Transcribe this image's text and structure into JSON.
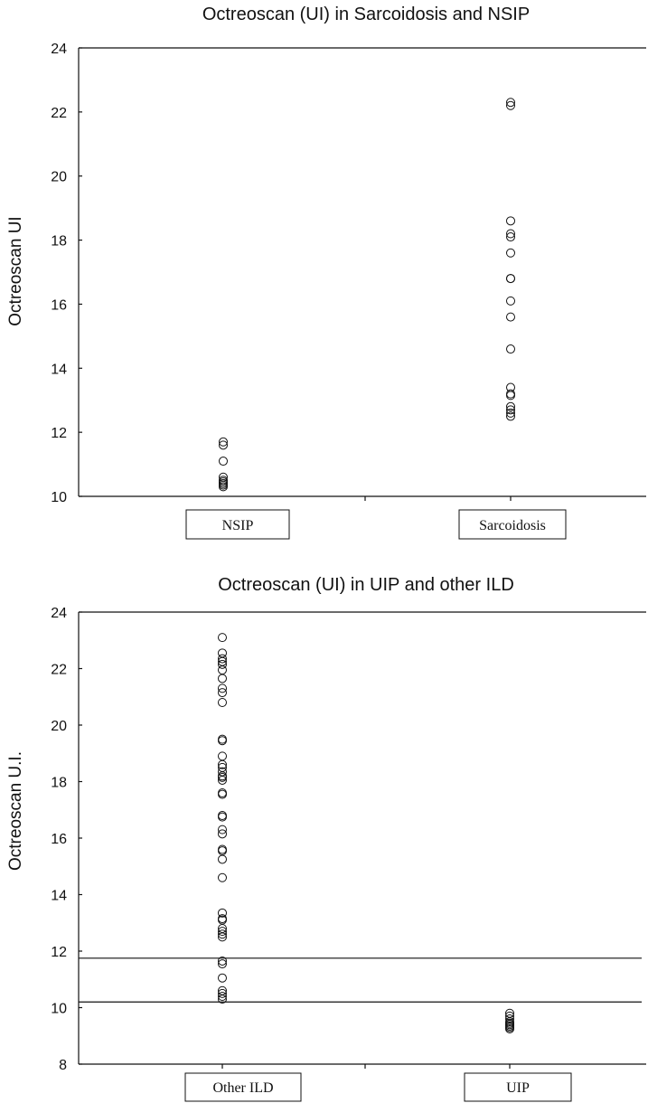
{
  "chart_data": [
    {
      "type": "scatter",
      "title": "Octreoscan (UI) in Sarcoidosis and NSIP",
      "ylabel": "Octreoscan UI",
      "xlabel": "",
      "categories": [
        "NSIP",
        "Sarcoidosis"
      ],
      "ylim": [
        10,
        24
      ],
      "yticks": [
        10,
        12,
        14,
        16,
        18,
        20,
        22,
        24
      ],
      "grid": false,
      "series": [
        {
          "category": "NSIP",
          "values": [
            11.7,
            11.6,
            11.1,
            10.6,
            10.5,
            10.45,
            10.4,
            10.35,
            10.3
          ]
        },
        {
          "category": "Sarcoidosis",
          "values": [
            22.3,
            22.2,
            18.6,
            18.2,
            18.1,
            17.6,
            16.8,
            16.8,
            16.1,
            15.6,
            14.6,
            13.4,
            13.2,
            13.15,
            12.8,
            12.7,
            12.6,
            12.5
          ]
        }
      ]
    },
    {
      "type": "scatter",
      "title": "Octreoscan (UI)  in UIP and other ILD",
      "ylabel": "Octreoscan  U.I.",
      "xlabel": "",
      "categories": [
        "Other ILD",
        "UIP"
      ],
      "ylim": [
        8,
        24
      ],
      "yticks": [
        8,
        10,
        12,
        14,
        16,
        18,
        20,
        22,
        24
      ],
      "grid": false,
      "reference_lines": [
        11.75,
        10.2
      ],
      "series": [
        {
          "category": "Other ILD",
          "values": [
            23.1,
            22.55,
            22.35,
            22.25,
            22.15,
            21.95,
            21.65,
            21.3,
            21.15,
            20.8,
            19.5,
            19.45,
            18.9,
            18.6,
            18.5,
            18.35,
            18.2,
            18.15,
            18.05,
            17.6,
            17.55,
            16.8,
            16.75,
            16.3,
            16.15,
            15.6,
            15.55,
            15.25,
            14.6,
            13.35,
            13.15,
            13.1,
            12.8,
            12.7,
            12.6,
            12.5,
            11.65,
            11.55,
            11.05,
            10.6,
            10.5,
            10.4,
            10.3
          ]
        },
        {
          "category": "UIP",
          "values": [
            9.8,
            9.7,
            9.6,
            9.5,
            9.45,
            9.4,
            9.35,
            9.3,
            9.25
          ]
        }
      ]
    }
  ]
}
